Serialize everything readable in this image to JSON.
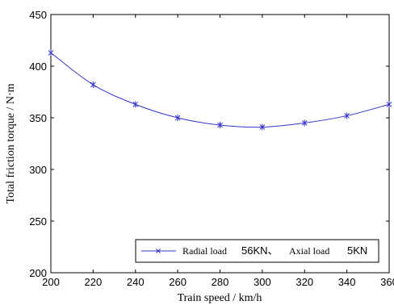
{
  "chart_data": {
    "type": "line",
    "x": [
      200,
      220,
      240,
      260,
      280,
      300,
      320,
      340,
      360
    ],
    "series": [
      {
        "name": "Radial load 56KN、Axial load 5KN",
        "values": [
          413,
          382,
          363,
          350,
          343,
          341,
          345,
          352,
          363
        ],
        "color": "#3333cc"
      }
    ],
    "xlabel": "Train speed  / km/h",
    "ylabel": "Total friction torque  / N·m",
    "xlim": [
      200,
      360
    ],
    "ylim": [
      200,
      450
    ],
    "xticks": [
      200,
      220,
      240,
      260,
      280,
      300,
      320,
      340,
      360
    ],
    "yticks": [
      200,
      250,
      300,
      350,
      400,
      450
    ],
    "grid": false,
    "legend_position": "bottom-right",
    "legend": {
      "part1": "Radial load",
      "part2": "56KN、",
      "part3": "Axial load",
      "part4": "5KN"
    }
  }
}
